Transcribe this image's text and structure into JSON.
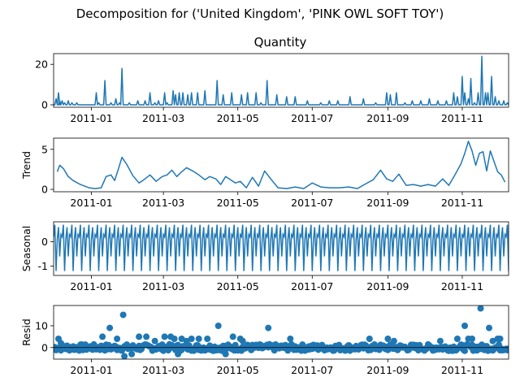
{
  "figure": {
    "suptitle": "Decomposition for ('United Kingdom', 'PINK OWL SOFT TOY')"
  },
  "colors": {
    "series": "#1f77b4",
    "axis": "#000000",
    "zero_line": "#000000"
  },
  "chart_data": [
    {
      "type": "line",
      "title": "Quantity",
      "ylabel": "",
      "x_range": [
        "2010-12-01",
        "2011-12-09"
      ],
      "x_ticks": [
        "2011-01",
        "2011-03",
        "2011-05",
        "2011-07",
        "2011-09",
        "2011-11"
      ],
      "ylim": [
        -1.2,
        25.3
      ],
      "y_ticks": [
        0,
        20
      ],
      "grid": false,
      "x": [
        "2010-12-01",
        "2010-12-03",
        "2010-12-05",
        "2010-12-06",
        "2010-12-08",
        "2010-12-10",
        "2010-12-13",
        "2010-12-16",
        "2010-12-20",
        "2011-01-05",
        "2011-01-07",
        "2011-01-12",
        "2011-01-17",
        "2011-01-21",
        "2011-01-24",
        "2011-01-26",
        "2011-02-01",
        "2011-02-08",
        "2011-02-14",
        "2011-02-18",
        "2011-02-22",
        "2011-02-25",
        "2011-03-02",
        "2011-03-04",
        "2011-03-09",
        "2011-03-11",
        "2011-03-14",
        "2011-03-17",
        "2011-03-21",
        "2011-03-24",
        "2011-03-29",
        "2011-04-04",
        "2011-04-14",
        "2011-04-19",
        "2011-04-26",
        "2011-05-04",
        "2011-05-09",
        "2011-05-16",
        "2011-05-20",
        "2011-05-25",
        "2011-06-02",
        "2011-06-10",
        "2011-06-17",
        "2011-06-27",
        "2011-07-08",
        "2011-07-15",
        "2011-07-22",
        "2011-08-01",
        "2011-08-12",
        "2011-08-22",
        "2011-08-31",
        "2011-09-03",
        "2011-09-08",
        "2011-09-15",
        "2011-09-21",
        "2011-09-28",
        "2011-10-05",
        "2011-10-12",
        "2011-10-19",
        "2011-10-25",
        "2011-10-28",
        "2011-11-01",
        "2011-11-03",
        "2011-11-06",
        "2011-11-08",
        "2011-11-11",
        "2011-11-14",
        "2011-11-17",
        "2011-11-20",
        "2011-11-22",
        "2011-11-25",
        "2011-11-28",
        "2011-12-01",
        "2011-12-05",
        "2011-12-08"
      ],
      "values": [
        0,
        3,
        6,
        2,
        2,
        1,
        2,
        1,
        1,
        6,
        1,
        12,
        1,
        3,
        1,
        18,
        1,
        2,
        2,
        6,
        1,
        2,
        6,
        1,
        7,
        5,
        6,
        6,
        5,
        6,
        6,
        7,
        12,
        5,
        6,
        5,
        6,
        6,
        1,
        12,
        5,
        4,
        4,
        2,
        1,
        2,
        2,
        4,
        3,
        1,
        6,
        5,
        6,
        1,
        2,
        2,
        3,
        2,
        2,
        6,
        4,
        14,
        6,
        3,
        13,
        1,
        6,
        24,
        6,
        6,
        14,
        4,
        2,
        2,
        1
      ]
    },
    {
      "type": "line",
      "title": "",
      "ylabel": "Trend",
      "x_range": [
        "2010-12-01",
        "2011-12-09"
      ],
      "x_ticks": [
        "2011-01",
        "2011-03",
        "2011-05",
        "2011-07",
        "2011-09",
        "2011-11"
      ],
      "ylim": [
        -0.3,
        6.4
      ],
      "y_ticks": [
        0,
        5
      ],
      "grid": false,
      "x": [
        "2010-12-04",
        "2010-12-06",
        "2010-12-09",
        "2010-12-13",
        "2010-12-17",
        "2010-12-23",
        "2010-12-30",
        "2011-01-04",
        "2011-01-09",
        "2011-01-13",
        "2011-01-17",
        "2011-01-20",
        "2011-01-23",
        "2011-01-26",
        "2011-01-30",
        "2011-02-04",
        "2011-02-09",
        "2011-02-13",
        "2011-02-18",
        "2011-02-23",
        "2011-02-28",
        "2011-03-04",
        "2011-03-08",
        "2011-03-12",
        "2011-03-16",
        "2011-03-20",
        "2011-03-25",
        "2011-03-30",
        "2011-04-04",
        "2011-04-08",
        "2011-04-13",
        "2011-04-17",
        "2011-04-21",
        "2011-04-25",
        "2011-04-29",
        "2011-05-03",
        "2011-05-08",
        "2011-05-13",
        "2011-05-18",
        "2011-05-23",
        "2011-05-28",
        "2011-06-03",
        "2011-06-10",
        "2011-06-17",
        "2011-06-24",
        "2011-07-01",
        "2011-07-08",
        "2011-07-15",
        "2011-07-23",
        "2011-07-31",
        "2011-08-07",
        "2011-08-14",
        "2011-08-20",
        "2011-08-26",
        "2011-08-31",
        "2011-09-05",
        "2011-09-10",
        "2011-09-16",
        "2011-09-22",
        "2011-09-28",
        "2011-10-04",
        "2011-10-10",
        "2011-10-16",
        "2011-10-21",
        "2011-10-26",
        "2011-10-31",
        "2011-11-03",
        "2011-11-06",
        "2011-11-09",
        "2011-11-12",
        "2011-11-15",
        "2011-11-18",
        "2011-11-21",
        "2011-11-24",
        "2011-11-27",
        "2011-11-30",
        "2011-12-03",
        "2011-12-06"
      ],
      "values": [
        2.2,
        3.0,
        2.6,
        1.6,
        1.1,
        0.6,
        0.2,
        0.1,
        0.2,
        1.6,
        1.8,
        1.1,
        2.5,
        4.0,
        3.1,
        1.7,
        0.8,
        1.2,
        1.8,
        1.0,
        1.6,
        1.8,
        2.4,
        1.6,
        2.2,
        2.7,
        2.3,
        1.8,
        1.2,
        1.6,
        1.3,
        0.6,
        1.6,
        1.2,
        0.8,
        1.0,
        0.2,
        1.5,
        0.4,
        2.3,
        1.3,
        0.2,
        0.1,
        0.3,
        0.1,
        0.8,
        0.3,
        0.2,
        0.2,
        0.3,
        0.1,
        0.7,
        1.2,
        2.4,
        1.3,
        1.0,
        1.9,
        0.5,
        0.6,
        0.4,
        0.6,
        0.4,
        1.3,
        0.5,
        1.8,
        3.2,
        4.5,
        6.0,
        4.8,
        3.0,
        4.5,
        4.7,
        2.3,
        4.8,
        3.5,
        2.2,
        1.8,
        0.9
      ]
    },
    {
      "type": "line",
      "title": "",
      "ylabel": "Seasonal",
      "x_range": [
        "2010-12-01",
        "2011-12-09"
      ],
      "x_ticks": [
        "2011-01",
        "2011-03",
        "2011-05",
        "2011-07",
        "2011-09",
        "2011-11"
      ],
      "ylim": [
        -1.38,
        0.82
      ],
      "y_ticks": [
        -1,
        0
      ],
      "grid": false,
      "period_days": 7,
      "pattern": [
        0.2,
        0.7,
        -1.2,
        0.1,
        0.6,
        -0.6,
        0.3
      ]
    },
    {
      "type": "scatter",
      "title": "",
      "ylabel": "Resid",
      "x_range": [
        "2010-12-01",
        "2011-12-09"
      ],
      "x_ticks": [
        "2011-01",
        "2011-03",
        "2011-05",
        "2011-07",
        "2011-09",
        "2011-11"
      ],
      "ylim": [
        -5.3,
        19.3
      ],
      "y_ticks": [
        0,
        10
      ],
      "grid": false,
      "zero_line": true,
      "outliers": [
        {
          "x": "2010-12-05",
          "y": 4
        },
        {
          "x": "2010-12-07",
          "y": 2
        },
        {
          "x": "2011-01-03",
          "y": 1
        },
        {
          "x": "2011-01-10",
          "y": 5
        },
        {
          "x": "2011-01-16",
          "y": 9
        },
        {
          "x": "2011-01-22",
          "y": 4
        },
        {
          "x": "2011-01-27",
          "y": 15
        },
        {
          "x": "2011-01-28",
          "y": -4
        },
        {
          "x": "2011-02-03",
          "y": -3
        },
        {
          "x": "2011-02-09",
          "y": 5
        },
        {
          "x": "2011-02-15",
          "y": 5
        },
        {
          "x": "2011-02-22",
          "y": 3
        },
        {
          "x": "2011-03-02",
          "y": 5
        },
        {
          "x": "2011-03-07",
          "y": 5
        },
        {
          "x": "2011-03-10",
          "y": 4
        },
        {
          "x": "2011-03-13",
          "y": -3
        },
        {
          "x": "2011-03-16",
          "y": 4
        },
        {
          "x": "2011-03-20",
          "y": 3
        },
        {
          "x": "2011-03-24",
          "y": 4
        },
        {
          "x": "2011-03-30",
          "y": 4
        },
        {
          "x": "2011-04-06",
          "y": 4
        },
        {
          "x": "2011-04-15",
          "y": 10
        },
        {
          "x": "2011-04-21",
          "y": -3
        },
        {
          "x": "2011-04-27",
          "y": 5
        },
        {
          "x": "2011-05-03",
          "y": 4
        },
        {
          "x": "2011-05-05",
          "y": 3
        },
        {
          "x": "2011-05-26",
          "y": 9
        },
        {
          "x": "2011-06-13",
          "y": 4
        },
        {
          "x": "2011-08-17",
          "y": 4
        },
        {
          "x": "2011-09-01",
          "y": 4
        },
        {
          "x": "2011-09-06",
          "y": 3
        },
        {
          "x": "2011-10-14",
          "y": 3
        },
        {
          "x": "2011-10-28",
          "y": 4
        },
        {
          "x": "2011-11-03",
          "y": 10
        },
        {
          "x": "2011-11-06",
          "y": 4
        },
        {
          "x": "2011-11-09",
          "y": 4
        },
        {
          "x": "2011-11-16",
          "y": 18
        },
        {
          "x": "2011-11-23",
          "y": 9
        },
        {
          "x": "2011-11-26",
          "y": 3
        },
        {
          "x": "2011-11-30",
          "y": 4
        },
        {
          "x": "2011-12-02",
          "y": 4
        }
      ],
      "baseline_spread": 1.5
    }
  ]
}
